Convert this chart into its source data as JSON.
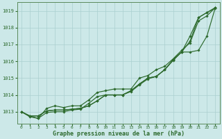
{
  "title": "Graphe pression niveau de la mer (hPa)",
  "bg_color": "#cce8e8",
  "grid_color": "#aacfcf",
  "line_color": "#2d6a2d",
  "text_color": "#2d6a2d",
  "xlim": [
    -0.5,
    23.5
  ],
  "ylim": [
    1012.3,
    1019.5
  ],
  "yticks": [
    1013,
    1014,
    1015,
    1016,
    1017,
    1018,
    1019
  ],
  "xticks": [
    0,
    1,
    2,
    3,
    4,
    5,
    6,
    7,
    8,
    9,
    10,
    11,
    12,
    13,
    14,
    15,
    16,
    17,
    18,
    19,
    20,
    21,
    22,
    23
  ],
  "series": [
    [
      1013.0,
      1012.75,
      1012.75,
      1013.05,
      1013.1,
      1013.1,
      1013.15,
      1013.2,
      1013.35,
      1013.65,
      1014.0,
      1014.0,
      1014.0,
      1014.25,
      1014.65,
      1015.0,
      1015.1,
      1015.5,
      1016.1,
      1016.55,
      1017.2,
      1018.6,
      1018.9,
      1019.2
    ],
    [
      1013.0,
      1012.75,
      1012.75,
      1013.05,
      1013.1,
      1013.1,
      1013.15,
      1013.2,
      1013.35,
      1013.65,
      1014.0,
      1014.0,
      1014.0,
      1014.25,
      1014.65,
      1015.0,
      1015.1,
      1015.5,
      1016.1,
      1016.55,
      1017.5,
      1018.6,
      1018.9,
      1019.15
    ],
    [
      1013.0,
      1012.75,
      1012.6,
      1013.2,
      1013.35,
      1013.25,
      1013.35,
      1013.35,
      1013.7,
      1014.15,
      1014.25,
      1014.35,
      1014.35,
      1014.35,
      1015.0,
      1015.15,
      1015.5,
      1015.7,
      1016.15,
      1016.65,
      1017.1,
      1018.4,
      1018.7,
      1019.2
    ],
    [
      1013.0,
      1012.7,
      1012.6,
      1012.95,
      1013.0,
      1013.0,
      1013.1,
      1013.15,
      1013.5,
      1013.9,
      1014.0,
      1014.0,
      1014.0,
      1014.2,
      1014.6,
      1014.95,
      1015.1,
      1015.5,
      1016.05,
      1016.55,
      1016.55,
      1016.65,
      1017.5,
      1019.2
    ]
  ]
}
